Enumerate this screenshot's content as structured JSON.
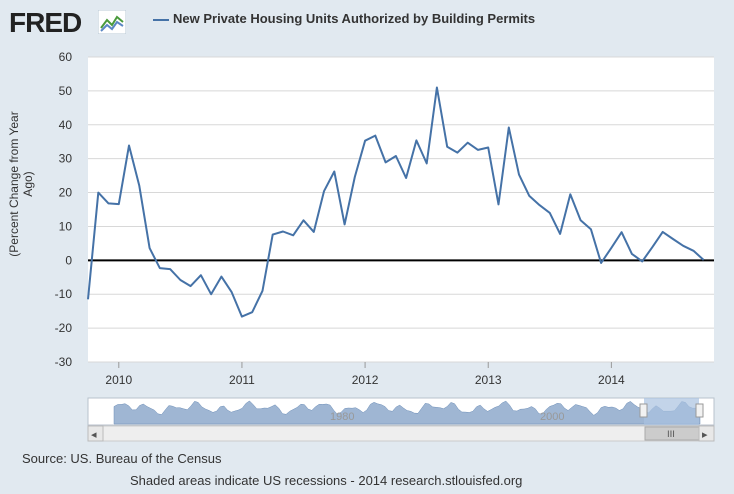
{
  "brand": {
    "logo_text": "FRED"
  },
  "chart_data": {
    "type": "line",
    "title": "New Private Housing Units Authorized by Building Permits",
    "ylabel": "(Percent Change from Year Ago)",
    "xlabel": "",
    "ylim": [
      -30,
      60
    ],
    "yticks": [
      -30,
      -20,
      -10,
      0,
      10,
      20,
      30,
      40,
      50,
      60
    ],
    "xlim": [
      "2009-10",
      "2014-11"
    ],
    "xticks": [
      "2010",
      "2011",
      "2012",
      "2013",
      "2014"
    ],
    "grid": true,
    "legend": "top",
    "series": [
      {
        "name": "New Private Housing Units Authorized by Building Permits",
        "color": "#4572a7",
        "points": [
          [
            "2009-10",
            -11.5
          ],
          [
            "2009-11",
            20.0
          ],
          [
            "2009-12",
            16.8
          ],
          [
            "2010-01",
            16.6
          ],
          [
            "2010-02",
            33.9
          ],
          [
            "2010-03",
            22.0
          ],
          [
            "2010-04",
            3.6
          ],
          [
            "2010-05",
            -2.3
          ],
          [
            "2010-06",
            -2.6
          ],
          [
            "2010-07",
            -5.8
          ],
          [
            "2010-08",
            -7.6
          ],
          [
            "2010-09",
            -4.4
          ],
          [
            "2010-10",
            -10.0
          ],
          [
            "2010-11",
            -4.8
          ],
          [
            "2010-12",
            -9.4
          ],
          [
            "2011-01",
            -16.6
          ],
          [
            "2011-02",
            -15.3
          ],
          [
            "2011-03",
            -9.0
          ],
          [
            "2011-04",
            7.6
          ],
          [
            "2011-05",
            8.5
          ],
          [
            "2011-06",
            7.4
          ],
          [
            "2011-07",
            11.8
          ],
          [
            "2011-08",
            8.4
          ],
          [
            "2011-09",
            20.4
          ],
          [
            "2011-10",
            26.2
          ],
          [
            "2011-11",
            10.6
          ],
          [
            "2011-12",
            24.6
          ],
          [
            "2012-01",
            35.3
          ],
          [
            "2012-02",
            36.8
          ],
          [
            "2012-03",
            28.9
          ],
          [
            "2012-04",
            30.8
          ],
          [
            "2012-05",
            24.3
          ],
          [
            "2012-06",
            35.4
          ],
          [
            "2012-07",
            28.6
          ],
          [
            "2012-08",
            51.0
          ],
          [
            "2012-09",
            33.5
          ],
          [
            "2012-10",
            31.8
          ],
          [
            "2012-11",
            34.7
          ],
          [
            "2012-12",
            32.6
          ],
          [
            "2013-01",
            33.3
          ],
          [
            "2013-02",
            16.5
          ],
          [
            "2013-03",
            39.2
          ],
          [
            "2013-04",
            25.3
          ],
          [
            "2013-05",
            19.0
          ],
          [
            "2013-06",
            16.3
          ],
          [
            "2013-07",
            14.0
          ],
          [
            "2013-08",
            7.8
          ],
          [
            "2013-09",
            19.5
          ],
          [
            "2013-10",
            11.8
          ],
          [
            "2013-11",
            9.2
          ],
          [
            "2013-12",
            -0.8
          ],
          [
            "2014-01",
            3.7
          ],
          [
            "2014-02",
            8.3
          ],
          [
            "2014-03",
            1.9
          ],
          [
            "2014-04",
            -0.3
          ],
          [
            "2014-05",
            3.9
          ],
          [
            "2014-06",
            8.4
          ],
          [
            "2014-07",
            6.3
          ],
          [
            "2014-08",
            4.3
          ],
          [
            "2014-09",
            2.8
          ],
          [
            "2014-10",
            0.1
          ]
        ]
      }
    ]
  },
  "navigator": {
    "labels": [
      "1980",
      "2000"
    ],
    "scroll_handle_label": "III",
    "left_arrow": "◂",
    "right_arrow": "▸"
  },
  "footer": {
    "source": "Source: US. Bureau of the Census",
    "note": "Shaded areas indicate US recessions - 2014 research.stlouisfed.org"
  }
}
